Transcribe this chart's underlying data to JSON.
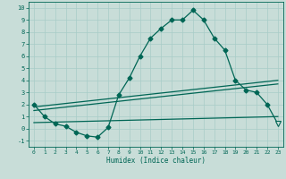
{
  "xlabel": "Humidex (Indice chaleur)",
  "background_color": "#c8ddd8",
  "grid_color": "#a8ccc8",
  "line_color": "#006655",
  "xlim": [
    -0.5,
    23.5
  ],
  "ylim": [
    -1.5,
    10.5
  ],
  "yticks": [
    -1,
    0,
    1,
    2,
    3,
    4,
    5,
    6,
    7,
    8,
    9,
    10
  ],
  "xticks": [
    0,
    1,
    2,
    3,
    4,
    5,
    6,
    7,
    8,
    9,
    10,
    11,
    12,
    13,
    14,
    15,
    16,
    17,
    18,
    19,
    20,
    21,
    22,
    23
  ],
  "main_x": [
    0,
    1,
    2,
    3,
    4,
    5,
    6,
    7,
    8,
    9,
    10,
    11,
    12,
    13,
    14,
    15,
    16,
    17,
    18,
    19,
    20,
    21,
    22,
    23
  ],
  "main_y": [
    2.0,
    1.0,
    0.4,
    0.2,
    -0.3,
    -0.6,
    -0.7,
    0.1,
    2.8,
    4.2,
    6.0,
    7.5,
    8.3,
    9.0,
    9.0,
    9.8,
    9.0,
    7.5,
    6.5,
    4.0,
    3.2,
    3.0,
    2.0,
    0.4
  ],
  "line2_x": [
    0,
    23
  ],
  "line2_y": [
    1.8,
    4.0
  ],
  "line3_x": [
    0,
    23
  ],
  "line3_y": [
    1.5,
    3.7
  ],
  "line4_x": [
    0,
    23
  ],
  "line4_y": [
    0.5,
    1.0
  ],
  "markersize": 2.5,
  "last_marker_x": [
    23
  ],
  "last_marker_y": [
    0.4
  ],
  "linewidth": 0.9
}
